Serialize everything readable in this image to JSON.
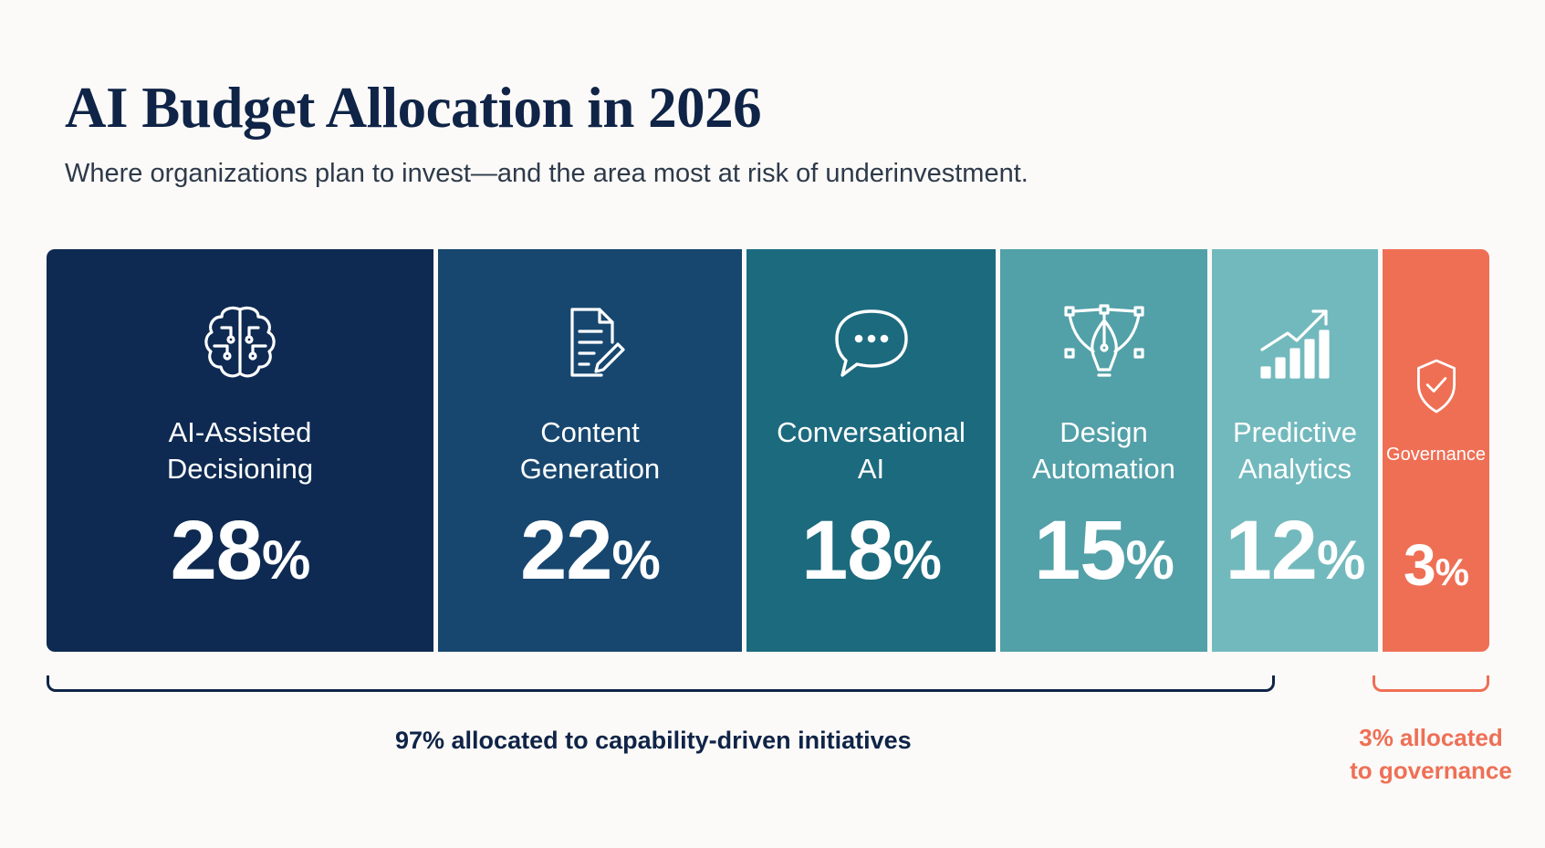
{
  "header": {
    "title": "AI Budget Allocation in 2026",
    "subtitle": "Where organizations plan to invest—and the area most at risk of underinvestment."
  },
  "chart_data": {
    "type": "bar",
    "orientation": "stacked-100-percent-horizontal",
    "title": "AI Budget Allocation in 2026",
    "subtitle": "Where organizations plan to invest—and the area most at risk of underinvestment.",
    "unit": "%",
    "categories": [
      "AI-Assisted Decisioning",
      "Content Generation",
      "Conversational AI",
      "Design Automation",
      "Predictive Analytics",
      "Governance"
    ],
    "series": [
      {
        "values": [
          28,
          22,
          18,
          15,
          12,
          3
        ]
      }
    ],
    "segments": [
      {
        "label": "AI-Assisted\nDecisioning",
        "value": 28,
        "value_text": "28",
        "color": "#0e2a52",
        "icon": "brain-circuit-icon"
      },
      {
        "label": "Content\nGeneration",
        "value": 22,
        "value_text": "22",
        "color": "#17476f",
        "icon": "document-edit-icon"
      },
      {
        "label": "Conversational\nAI",
        "value": 18,
        "value_text": "18",
        "color": "#1c6a7e",
        "icon": "chat-bubble-icon"
      },
      {
        "label": "Design\nAutomation",
        "value": 15,
        "value_text": "15",
        "color": "#52a0a8",
        "icon": "pen-tool-icon"
      },
      {
        "label": "Predictive\nAnalytics",
        "value": 12,
        "value_text": "12",
        "color": "#72b9bd",
        "icon": "growth-chart-icon"
      },
      {
        "label": "Governance",
        "value": 3,
        "value_text": "3",
        "color": "#ef6f55",
        "icon": "shield-check-icon"
      }
    ],
    "percent_sign": "%",
    "annotations": {
      "capability": "97% allocated to capability-driven initiatives",
      "governance_line1": "3% allocated",
      "governance_line2": "to governance"
    },
    "colors": {
      "title": "#0f2447",
      "governance_accent": "#ef6f55"
    }
  }
}
